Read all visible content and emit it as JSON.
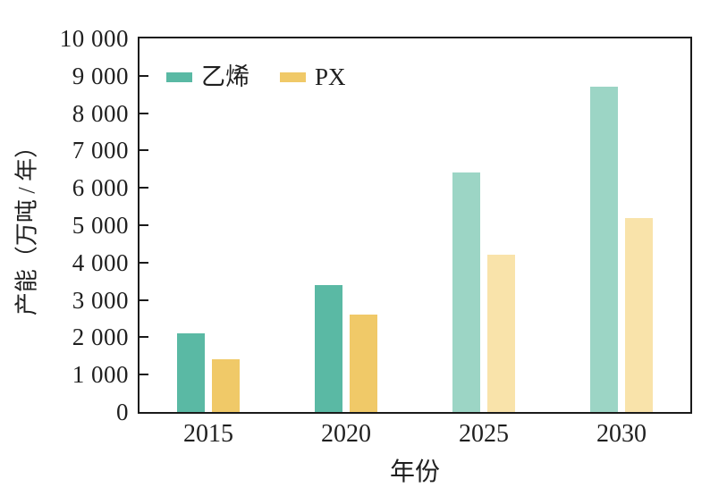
{
  "figure": {
    "background": "#ffffff",
    "frame_color": "#1a1a1a",
    "text_color": "#1f1f1f"
  },
  "chart_data": {
    "type": "bar",
    "title": "",
    "xlabel": "年份",
    "ylabel": "产能（万吨 / 年）",
    "categories": [
      "2015",
      "2020",
      "2025",
      "2030"
    ],
    "series": [
      {
        "name": "乙烯",
        "values": [
          2100,
          3400,
          6400,
          8700
        ],
        "color": "#5ab9a4",
        "forecast_color": "#9cd5c5"
      },
      {
        "name": "PX",
        "values": [
          1400,
          2600,
          4200,
          5200
        ],
        "color": "#f0c968",
        "forecast_color": "#f9e3aa"
      }
    ],
    "forecast_from_index": 2,
    "ylim": [
      0,
      10000
    ],
    "ytick_step": 1000,
    "ytick_labels": [
      "0",
      "1 000",
      "2 000",
      "3 000",
      "4 000",
      "5 000",
      "6 000",
      "7 000",
      "8 000",
      "9 000",
      "10 000"
    ],
    "grid": false,
    "legend_position": "top-left-inside",
    "legend_entries": [
      "乙烯",
      "PX"
    ]
  }
}
